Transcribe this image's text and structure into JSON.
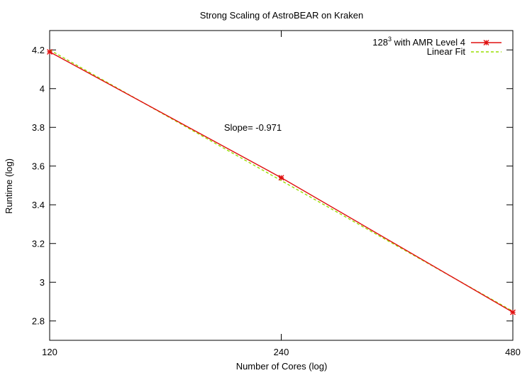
{
  "chart_data": {
    "type": "line",
    "title": "Strong Scaling of AstroBEAR on Kraken",
    "xlabel": "Number of Cores (log)",
    "ylabel": "Runtime (log)",
    "x_scale": "log",
    "xlim": [
      120,
      480
    ],
    "ylim": [
      2.7,
      4.3
    ],
    "x_ticks": [
      120,
      240,
      480
    ],
    "y_ticks": [
      2.8,
      3,
      3.2,
      3.4,
      3.6,
      3.8,
      4,
      4.2
    ],
    "y_tick_labels": [
      "2.8",
      "3",
      "3.2",
      "3.4",
      "3.6",
      "3.8",
      "4",
      "4.2"
    ],
    "grid": false,
    "legend_position": "top-right",
    "series": [
      {
        "name": "128",
        "name_superscript": "3",
        "name_suffix": " with AMR Level 4",
        "color": "#e01010",
        "style": "solid",
        "marker": "star",
        "x": [
          120,
          240,
          480
        ],
        "y": [
          4.19,
          3.54,
          2.845
        ]
      },
      {
        "name": "Linear Fit",
        "color": "#99dd00",
        "style": "dashed",
        "marker": "none",
        "x": [
          120,
          480
        ],
        "y": [
          4.2,
          2.85
        ]
      }
    ],
    "annotation": {
      "text": "Slope= -0.971",
      "x": 240,
      "y": 3.8
    }
  }
}
